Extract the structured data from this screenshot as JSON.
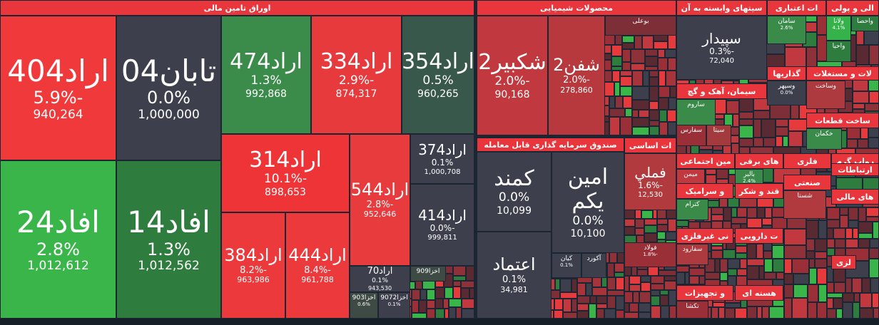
{
  "sectors": [
    {
      "title": "اوراق تامین مالی",
      "tiles": [
        {
          "name": "اراد404",
          "change": "-5.9%",
          "volume": "940,264"
        },
        {
          "name": "تابان04",
          "change": "0.0%",
          "volume": "1,000,000"
        },
        {
          "name": "اراد474",
          "change": "1.3%",
          "volume": "992,868"
        },
        {
          "name": "اراد334",
          "change": "-2.9%",
          "volume": "874,317"
        },
        {
          "name": "اراد354",
          "change": "0.5%",
          "volume": "960,265"
        },
        {
          "name": "افاد24",
          "change": "2.8%",
          "volume": "1,012,612"
        },
        {
          "name": "افاد14",
          "change": "1.3%",
          "volume": "1,012,562"
        },
        {
          "name": "اراد314",
          "change": "-10.1%",
          "volume": "898,653"
        },
        {
          "name": "اراد384",
          "change": "-8.2%",
          "volume": "963,986"
        },
        {
          "name": "اراد444",
          "change": "-8.4%",
          "volume": "961,788"
        },
        {
          "name": "اراد544",
          "change": "-2.8%",
          "volume": "952,646"
        },
        {
          "name": "اراد374",
          "change": "0.1%",
          "volume": "1,000,708"
        },
        {
          "name": "اراد414",
          "change": "-0.0%",
          "volume": "999,811"
        },
        {
          "name": "اراد70",
          "change": "0.1%",
          "volume": "943,530"
        },
        {
          "name": "اخزا909"
        },
        {
          "name": "اخزا903",
          "change": "0.6%"
        },
        {
          "name": "اخزا9072",
          "change": "0.1%"
        }
      ]
    },
    {
      "title": "محصولات شیمیایی",
      "tiles": [
        {
          "name": "شکبیر2",
          "change": "-2.0%",
          "volume": "90,168"
        },
        {
          "name": "شفن2",
          "change": "-2.0%",
          "volume": "278,860"
        },
        {
          "name": "بوعلی"
        }
      ]
    },
    {
      "title": "صندوق سرمایه گذاری قابل معامله",
      "tiles": [
        {
          "name": "کمند",
          "change": "0.0%",
          "volume": "10,099"
        },
        {
          "name": "امین یکم",
          "change": "0.0%",
          "volume": "10,100"
        },
        {
          "name": "اعتماد",
          "change": "0.1%",
          "volume": "34,981"
        },
        {
          "name": "کیان",
          "change": "0.1%"
        },
        {
          "name": "آکورد"
        }
      ]
    },
    {
      "title": "ات اساسی",
      "tiles": [
        {
          "name": "فملي",
          "change": "-1.6%",
          "volume": "12,530"
        },
        {
          "name": "فولاد",
          "change": "-1.8%"
        }
      ]
    },
    {
      "title": "سیتهای وابسته به آن",
      "tiles": [
        {
          "name": "سپيدار",
          "change": "-0.3%",
          "volume": "72,040"
        }
      ]
    },
    {
      "title": "ات اعتباری",
      "tiles": [
        {
          "name": "سامان",
          "change": "2.6%"
        }
      ]
    },
    {
      "title": "الی و پولی",
      "tiles": [
        {
          "name": "ولانا",
          "change": "4.1%"
        },
        {
          "name": "واحصا"
        },
        {
          "name": "واحيا"
        }
      ]
    },
    {
      "title": "گذاريها",
      "tiles": [
        {
          "name": "وسپهر",
          "change": "0.0%"
        }
      ]
    },
    {
      "title": "لات و مستغلات",
      "tiles": [
        {
          "name": "وساخت"
        }
      ]
    },
    {
      "title": "سیمان، آهک و گچ",
      "tiles": [
        {
          "name": "ساروم"
        },
        {
          "name": "سيتا"
        },
        {
          "name": "سفارس"
        }
      ]
    },
    {
      "title": "ساخت قطعات",
      "tiles": [
        {
          "name": "خکمان"
        }
      ]
    },
    {
      "title": "مین اجتماعی",
      "tiles": [
        {
          "name": "ميمن"
        }
      ]
    },
    {
      "title": "های برقی",
      "tiles": [
        {
          "name": "بالبر",
          "change": "2.4%"
        }
      ]
    },
    {
      "title": "فلزی",
      "tiles": []
    },
    {
      "title": "رواب گرم",
      "tiles": []
    },
    {
      "title": "ارتباطات",
      "tiles": []
    },
    {
      "title": "و سرامیک",
      "tiles": [
        {
          "name": "کترام"
        }
      ]
    },
    {
      "title": "قند و شکر",
      "tiles": []
    },
    {
      "title": "صنعتی",
      "tiles": [
        {
          "name": "شستا"
        }
      ]
    },
    {
      "title": "های مالی",
      "tiles": []
    },
    {
      "title": "نی غیرفلزی",
      "tiles": [
        {
          "name": "سفارود"
        }
      ]
    },
    {
      "title": "ت دارویی",
      "tiles": []
    },
    {
      "title": "هسته ای",
      "tiles": []
    },
    {
      "title": "و تجهیزات",
      "tiles": [
        {
          "name": "تکشا"
        }
      ]
    },
    {
      "title": "لزی",
      "tiles": []
    }
  ]
}
